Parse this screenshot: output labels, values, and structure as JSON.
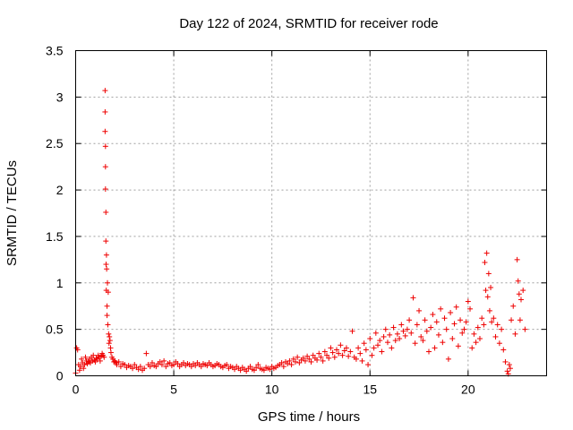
{
  "chart_data": {
    "type": "scatter",
    "title": "Day 122 of 2024, SRMTID for receiver rode",
    "xlabel": "GPS time / hours",
    "ylabel": "SRMTID / TECUs",
    "xlim": [
      0,
      24
    ],
    "ylim": [
      0,
      3.5
    ],
    "x_ticks": [
      0,
      5,
      10,
      15,
      20
    ],
    "x_tick_labels": [
      "0",
      "5",
      "10",
      "15",
      "20"
    ],
    "y_ticks": [
      0,
      0.5,
      1,
      1.5,
      2,
      2.5,
      3,
      3.5
    ],
    "y_tick_labels": [
      "0",
      "0.5",
      "1",
      "1.5",
      "2",
      "2.5",
      "3",
      "3.5"
    ],
    "grid": true,
    "marker": "+",
    "color": "#ee0000",
    "series": [
      {
        "name": "SRMTID",
        "x": [
          0.0,
          0.05,
          0.1,
          0.15,
          0.2,
          0.25,
          0.3,
          0.35,
          0.4,
          0.45,
          0.5,
          0.55,
          0.6,
          0.65,
          0.7,
          0.75,
          0.8,
          0.85,
          0.9,
          0.95,
          1.0,
          1.05,
          1.1,
          1.15,
          1.2,
          1.25,
          1.3,
          1.35,
          1.4,
          1.45,
          1.5,
          1.5,
          1.5,
          1.52,
          1.52,
          1.52,
          1.54,
          1.54,
          1.55,
          1.56,
          1.57,
          1.58,
          1.6,
          1.6,
          1.62,
          1.64,
          1.66,
          1.68,
          1.7,
          1.72,
          1.75,
          1.78,
          1.8,
          1.85,
          1.9,
          1.95,
          2.0,
          2.05,
          2.1,
          2.2,
          2.3,
          2.4,
          2.5,
          2.6,
          2.7,
          2.8,
          2.9,
          3.0,
          3.1,
          3.2,
          3.3,
          3.4,
          3.5,
          3.6,
          3.7,
          3.8,
          3.9,
          4.0,
          4.1,
          4.2,
          4.3,
          4.4,
          4.5,
          4.6,
          4.7,
          4.8,
          4.9,
          5.0,
          5.1,
          5.2,
          5.3,
          5.4,
          5.5,
          5.6,
          5.7,
          5.8,
          5.9,
          6.0,
          6.1,
          6.2,
          6.3,
          6.4,
          6.5,
          6.6,
          6.7,
          6.8,
          6.9,
          7.0,
          7.1,
          7.2,
          7.3,
          7.4,
          7.5,
          7.6,
          7.7,
          7.8,
          7.9,
          8.0,
          8.1,
          8.2,
          8.3,
          8.4,
          8.5,
          8.6,
          8.7,
          8.8,
          8.9,
          9.0,
          9.1,
          9.2,
          9.3,
          9.4,
          9.5,
          9.6,
          9.7,
          9.8,
          9.9,
          10.0,
          10.1,
          10.2,
          10.3,
          10.4,
          10.5,
          10.6,
          10.7,
          10.8,
          10.9,
          11.0,
          11.1,
          11.2,
          11.3,
          11.4,
          11.5,
          11.6,
          11.7,
          11.8,
          11.9,
          12.0,
          12.1,
          12.2,
          12.3,
          12.4,
          12.5,
          12.6,
          12.7,
          12.8,
          12.9,
          13.0,
          13.1,
          13.2,
          13.3,
          13.4,
          13.5,
          13.6,
          13.7,
          13.8,
          13.9,
          14.0,
          14.1,
          14.2,
          14.3,
          14.4,
          14.5,
          14.6,
          14.7,
          14.8,
          14.9,
          15.0,
          15.1,
          15.2,
          15.3,
          15.4,
          15.5,
          15.6,
          15.7,
          15.8,
          15.9,
          16.0,
          16.1,
          16.2,
          16.3,
          16.4,
          16.5,
          16.6,
          16.7,
          16.8,
          16.9,
          17.0,
          17.1,
          17.2,
          17.3,
          17.4,
          17.5,
          17.6,
          17.7,
          17.8,
          17.9,
          18.0,
          18.1,
          18.2,
          18.3,
          18.4,
          18.5,
          18.6,
          18.7,
          18.8,
          18.9,
          19.0,
          19.1,
          19.2,
          19.3,
          19.4,
          19.5,
          19.6,
          19.7,
          19.8,
          19.9,
          20.0,
          20.1,
          20.2,
          20.3,
          20.4,
          20.5,
          20.6,
          20.7,
          20.8,
          20.85,
          20.9,
          20.95,
          21.0,
          21.05,
          21.1,
          21.15,
          21.2,
          21.3,
          21.4,
          21.5,
          21.6,
          21.7,
          21.8,
          21.9,
          22.0,
          22.05,
          22.1,
          22.15,
          22.2,
          22.3,
          22.4,
          22.5,
          22.55,
          22.6,
          22.65,
          22.7,
          22.8,
          22.9
        ],
        "y": [
          0.03,
          0.3,
          0.28,
          0.12,
          0.06,
          0.1,
          0.18,
          0.14,
          0.08,
          0.12,
          0.2,
          0.16,
          0.13,
          0.15,
          0.18,
          0.14,
          0.2,
          0.16,
          0.22,
          0.17,
          0.15,
          0.19,
          0.18,
          0.22,
          0.2,
          0.16,
          0.21,
          0.24,
          0.22,
          0.2,
          3.07,
          2.84,
          2.63,
          2.47,
          2.25,
          2.01,
          1.76,
          1.45,
          1.2,
          0.92,
          1.3,
          1.15,
          0.75,
          0.65,
          1.0,
          0.55,
          0.9,
          0.45,
          0.35,
          0.42,
          0.38,
          0.3,
          0.25,
          0.2,
          0.18,
          0.15,
          0.16,
          0.14,
          0.12,
          0.15,
          0.1,
          0.13,
          0.12,
          0.09,
          0.11,
          0.1,
          0.08,
          0.12,
          0.09,
          0.07,
          0.1,
          0.06,
          0.08,
          0.24,
          0.12,
          0.1,
          0.14,
          0.11,
          0.1,
          0.13,
          0.15,
          0.12,
          0.16,
          0.1,
          0.13,
          0.14,
          0.11,
          0.12,
          0.15,
          0.13,
          0.1,
          0.12,
          0.14,
          0.11,
          0.13,
          0.12,
          0.1,
          0.13,
          0.11,
          0.14,
          0.12,
          0.1,
          0.13,
          0.12,
          0.11,
          0.14,
          0.12,
          0.1,
          0.11,
          0.13,
          0.12,
          0.1,
          0.09,
          0.11,
          0.12,
          0.08,
          0.1,
          0.09,
          0.07,
          0.1,
          0.08,
          0.06,
          0.09,
          0.07,
          0.05,
          0.08,
          0.1,
          0.07,
          0.06,
          0.09,
          0.12,
          0.08,
          0.07,
          0.06,
          0.09,
          0.08,
          0.07,
          0.1,
          0.08,
          0.09,
          0.11,
          0.12,
          0.14,
          0.1,
          0.15,
          0.13,
          0.16,
          0.12,
          0.18,
          0.15,
          0.2,
          0.14,
          0.17,
          0.19,
          0.16,
          0.21,
          0.18,
          0.15,
          0.22,
          0.19,
          0.17,
          0.24,
          0.2,
          0.16,
          0.26,
          0.22,
          0.19,
          0.3,
          0.25,
          0.2,
          0.28,
          0.24,
          0.33,
          0.22,
          0.27,
          0.3,
          0.21,
          0.26,
          0.48,
          0.2,
          0.18,
          0.3,
          0.24,
          0.16,
          0.35,
          0.28,
          0.12,
          0.4,
          0.22,
          0.3,
          0.46,
          0.33,
          0.38,
          0.26,
          0.42,
          0.5,
          0.36,
          0.44,
          0.3,
          0.52,
          0.38,
          0.45,
          0.4,
          0.55,
          0.48,
          0.43,
          0.5,
          0.6,
          0.46,
          0.84,
          0.35,
          0.55,
          0.7,
          0.42,
          0.38,
          0.6,
          0.48,
          0.26,
          0.52,
          0.66,
          0.3,
          0.58,
          0.44,
          0.72,
          0.36,
          0.62,
          0.5,
          0.18,
          0.68,
          0.4,
          0.56,
          0.74,
          0.32,
          0.6,
          0.46,
          0.5,
          0.58,
          0.8,
          0.72,
          0.3,
          0.45,
          0.36,
          0.52,
          0.4,
          0.62,
          0.55,
          1.22,
          0.92,
          1.32,
          0.85,
          1.1,
          0.7,
          0.95,
          0.58,
          0.62,
          0.42,
          0.55,
          0.35,
          0.5,
          0.28,
          0.15,
          0.05,
          0.02,
          0.12,
          0.08,
          0.6,
          0.75,
          0.45,
          1.25,
          1.02,
          0.88,
          0.6,
          0.82,
          0.92,
          0.5
        ]
      }
    ]
  }
}
